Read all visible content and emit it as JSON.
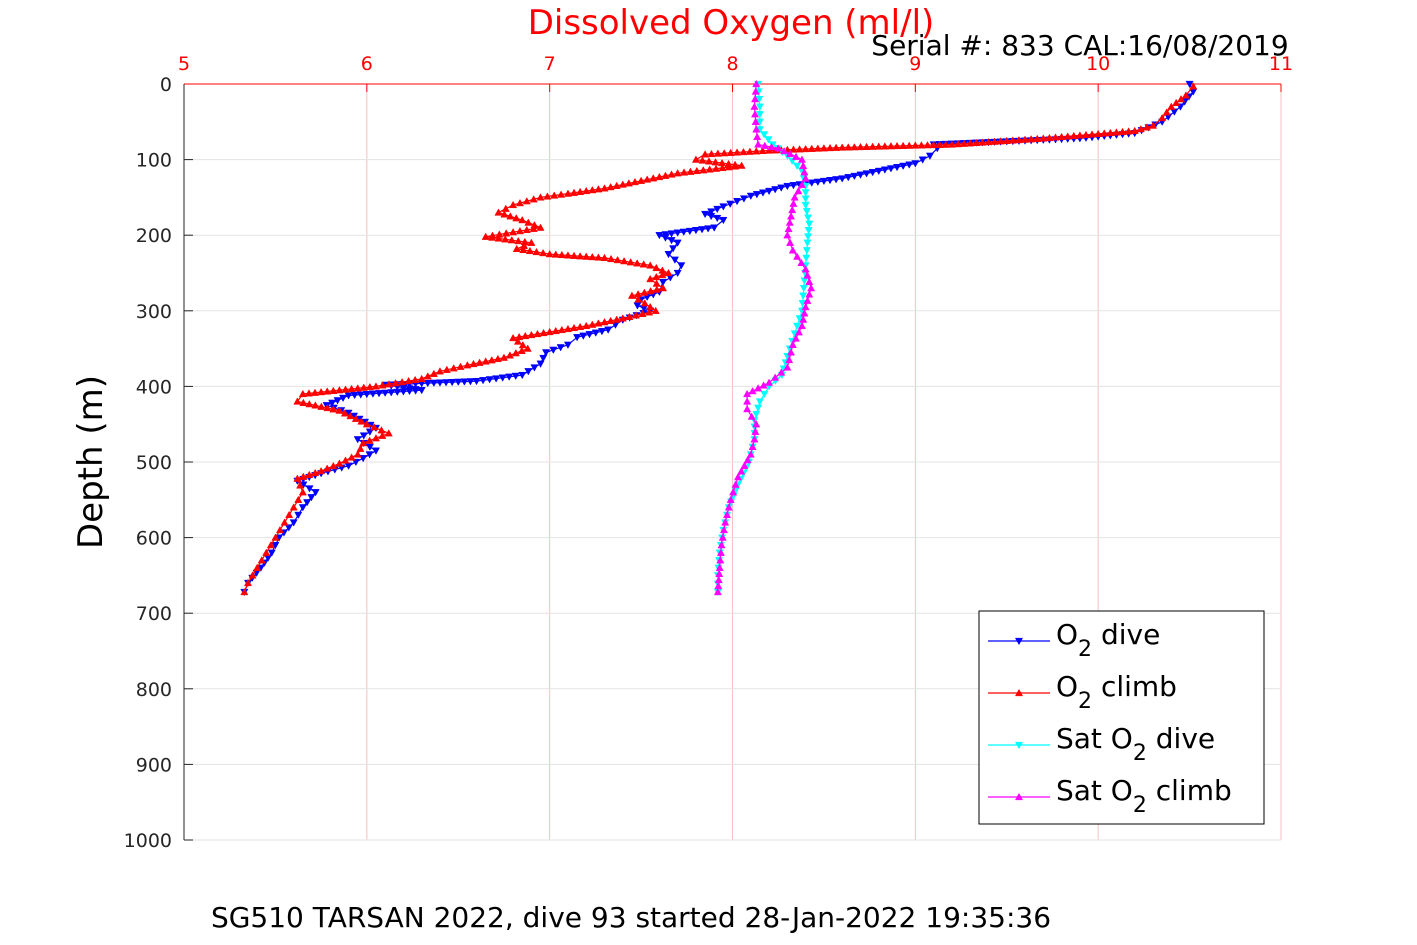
{
  "chart_data": {
    "type": "line",
    "title": "Dissolved Oxygen (ml/l)",
    "subtitle": "Serial #: 833  CAL:16/08/2019",
    "ylabel": "Depth (m)",
    "caption": "SG510 TARSAN 2022, dive 93 started 28-Jan-2022 19:35:36",
    "xlim": [
      5,
      11
    ],
    "ylim": [
      0,
      1000
    ],
    "y_reversed": true,
    "x_axis_position": "top",
    "xticks": [
      "5",
      "6",
      "7",
      "8",
      "9",
      "10",
      "11"
    ],
    "yticks": [
      "0",
      "100",
      "200",
      "300",
      "400",
      "500",
      "600",
      "700",
      "800",
      "900",
      "1000"
    ],
    "grid": true,
    "legend_position": "bottom-right",
    "series": [
      {
        "name": "O2 dive",
        "legend_main": "O",
        "legend_sub": "2",
        "legend_rest": " dive",
        "color": "#0000ff",
        "marker": "triangle-down",
        "points": [
          [
            10.5,
            0
          ],
          [
            10.52,
            10
          ],
          [
            10.45,
            30
          ],
          [
            10.35,
            50
          ],
          [
            10.2,
            65
          ],
          [
            9.9,
            72
          ],
          [
            9.5,
            76
          ],
          [
            9.1,
            80
          ],
          [
            9.12,
            85
          ],
          [
            9.08,
            95
          ],
          [
            9.0,
            105
          ],
          [
            8.8,
            115
          ],
          [
            8.6,
            125
          ],
          [
            8.3,
            135
          ],
          [
            8.1,
            148
          ],
          [
            7.95,
            162
          ],
          [
            7.85,
            172
          ],
          [
            7.95,
            180
          ],
          [
            7.9,
            190
          ],
          [
            7.6,
            200
          ],
          [
            7.7,
            210
          ],
          [
            7.65,
            225
          ],
          [
            7.72,
            240
          ],
          [
            7.7,
            250
          ],
          [
            7.62,
            262
          ],
          [
            7.6,
            275
          ],
          [
            7.5,
            285
          ],
          [
            7.48,
            293
          ],
          [
            7.55,
            300
          ],
          [
            7.4,
            312
          ],
          [
            7.32,
            325
          ],
          [
            7.15,
            335
          ],
          [
            7.1,
            345
          ],
          [
            6.98,
            355
          ],
          [
            6.95,
            370
          ],
          [
            6.85,
            385
          ],
          [
            6.6,
            393
          ],
          [
            6.1,
            398
          ],
          [
            6.3,
            405
          ],
          [
            5.9,
            412
          ],
          [
            5.78,
            425
          ],
          [
            5.9,
            435
          ],
          [
            6.05,
            455
          ],
          [
            5.95,
            470
          ],
          [
            6.05,
            485
          ],
          [
            5.98,
            495
          ],
          [
            5.9,
            505
          ],
          [
            5.75,
            515
          ],
          [
            5.62,
            525
          ],
          [
            5.72,
            540
          ],
          [
            5.65,
            560
          ],
          [
            5.6,
            580
          ],
          [
            5.52,
            600
          ],
          [
            5.48,
            620
          ],
          [
            5.42,
            640
          ],
          [
            5.35,
            660
          ],
          [
            5.33,
            672
          ]
        ]
      },
      {
        "name": "O2 climb",
        "legend_main": "O",
        "legend_sub": "2",
        "legend_rest": " climb",
        "color": "#ff0000",
        "marker": "triangle-up",
        "points": [
          [
            10.52,
            3
          ],
          [
            10.48,
            15
          ],
          [
            10.4,
            30
          ],
          [
            10.35,
            45
          ],
          [
            10.3,
            55
          ],
          [
            10.2,
            62
          ],
          [
            10.0,
            66
          ],
          [
            9.7,
            72
          ],
          [
            9.2,
            80
          ],
          [
            8.6,
            84
          ],
          [
            8.2,
            88
          ],
          [
            7.85,
            93
          ],
          [
            7.8,
            100
          ],
          [
            8.05,
            108
          ],
          [
            7.7,
            118
          ],
          [
            7.5,
            128
          ],
          [
            7.3,
            138
          ],
          [
            7.1,
            145
          ],
          [
            6.95,
            150
          ],
          [
            6.8,
            160
          ],
          [
            6.72,
            170
          ],
          [
            6.85,
            180
          ],
          [
            6.95,
            190
          ],
          [
            6.8,
            196
          ],
          [
            6.65,
            202
          ],
          [
            6.9,
            210
          ],
          [
            6.82,
            218
          ],
          [
            7.0,
            225
          ],
          [
            7.3,
            230
          ],
          [
            7.55,
            240
          ],
          [
            7.65,
            250
          ],
          [
            7.55,
            258
          ],
          [
            7.62,
            270
          ],
          [
            7.45,
            280
          ],
          [
            7.52,
            290
          ],
          [
            7.58,
            300
          ],
          [
            7.4,
            310
          ],
          [
            7.2,
            320
          ],
          [
            7.0,
            328
          ],
          [
            6.8,
            336
          ],
          [
            6.88,
            350
          ],
          [
            6.75,
            362
          ],
          [
            6.55,
            372
          ],
          [
            6.4,
            380
          ],
          [
            6.3,
            390
          ],
          [
            6.05,
            400
          ],
          [
            5.65,
            410
          ],
          [
            5.62,
            420
          ],
          [
            5.85,
            432
          ],
          [
            6.0,
            450
          ],
          [
            6.12,
            462
          ],
          [
            5.98,
            475
          ],
          [
            5.95,
            490
          ],
          [
            5.85,
            502
          ],
          [
            5.75,
            512
          ],
          [
            5.62,
            522
          ],
          [
            5.65,
            540
          ],
          [
            5.6,
            560
          ],
          [
            5.55,
            580
          ],
          [
            5.5,
            600
          ],
          [
            5.45,
            620
          ],
          [
            5.4,
            640
          ],
          [
            5.35,
            660
          ],
          [
            5.33,
            672
          ]
        ]
      },
      {
        "name": "Sat O2 dive",
        "legend_main": "Sat O",
        "legend_sub": "2",
        "legend_rest": " dive",
        "color": "#00ffff",
        "marker": "triangle-down",
        "points": [
          [
            8.14,
            0
          ],
          [
            8.15,
            30
          ],
          [
            8.15,
            60
          ],
          [
            8.22,
            80
          ],
          [
            8.3,
            95
          ],
          [
            8.38,
            115
          ],
          [
            8.4,
            135
          ],
          [
            8.4,
            160
          ],
          [
            8.42,
            185
          ],
          [
            8.41,
            210
          ],
          [
            8.4,
            240
          ],
          [
            8.39,
            270
          ],
          [
            8.38,
            300
          ],
          [
            8.34,
            330
          ],
          [
            8.3,
            360
          ],
          [
            8.27,
            385
          ],
          [
            8.2,
            400
          ],
          [
            8.15,
            420
          ],
          [
            8.12,
            445
          ],
          [
            8.12,
            470
          ],
          [
            8.09,
            500
          ],
          [
            8.03,
            530
          ],
          [
            7.98,
            560
          ],
          [
            7.95,
            590
          ],
          [
            7.93,
            620
          ],
          [
            7.92,
            650
          ],
          [
            7.92,
            672
          ]
        ]
      },
      {
        "name": "Sat O2 climb",
        "legend_main": "Sat O",
        "legend_sub": "2",
        "legend_rest": " climb",
        "color": "#ff00ff",
        "marker": "triangle-up",
        "points": [
          [
            8.13,
            0
          ],
          [
            8.12,
            30
          ],
          [
            8.13,
            60
          ],
          [
            8.14,
            80
          ],
          [
            8.25,
            85
          ],
          [
            8.38,
            100
          ],
          [
            8.4,
            125
          ],
          [
            8.34,
            150
          ],
          [
            8.32,
            175
          ],
          [
            8.3,
            200
          ],
          [
            8.33,
            220
          ],
          [
            8.4,
            245
          ],
          [
            8.43,
            270
          ],
          [
            8.4,
            295
          ],
          [
            8.38,
            320
          ],
          [
            8.33,
            345
          ],
          [
            8.3,
            375
          ],
          [
            8.2,
            395
          ],
          [
            8.08,
            410
          ],
          [
            8.08,
            430
          ],
          [
            8.13,
            450
          ],
          [
            8.12,
            470
          ],
          [
            8.1,
            490
          ],
          [
            8.03,
            520
          ],
          [
            7.99,
            550
          ],
          [
            7.96,
            580
          ],
          [
            7.94,
            610
          ],
          [
            7.93,
            640
          ],
          [
            7.92,
            672
          ]
        ]
      }
    ]
  }
}
